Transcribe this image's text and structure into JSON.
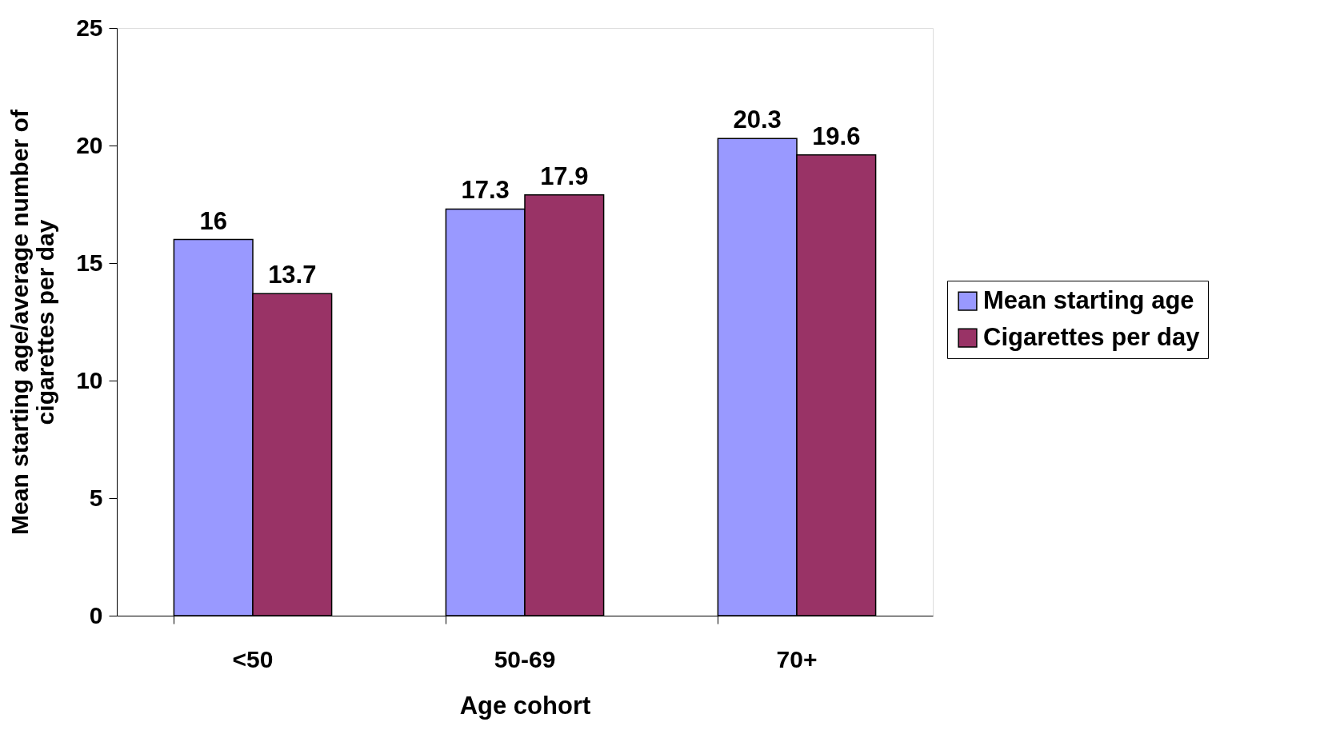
{
  "chart_data": {
    "type": "bar",
    "xlabel": "Age cohort",
    "ylabel": "Mean starting age/average number of cigarettes per day",
    "categories": [
      "<50",
      "50-69",
      "70+"
    ],
    "series": [
      {
        "name": "Mean starting age",
        "color": "#9999ff",
        "values": [
          16,
          17.3,
          20.3
        ]
      },
      {
        "name": "Cigarettes per day",
        "color": "#993366",
        "values": [
          13.7,
          17.9,
          19.6
        ]
      }
    ],
    "ylim": [
      0,
      25
    ],
    "yticks": [
      0,
      5,
      10,
      15,
      20,
      25
    ],
    "grid": false,
    "legend": "right",
    "data_labels": true
  }
}
